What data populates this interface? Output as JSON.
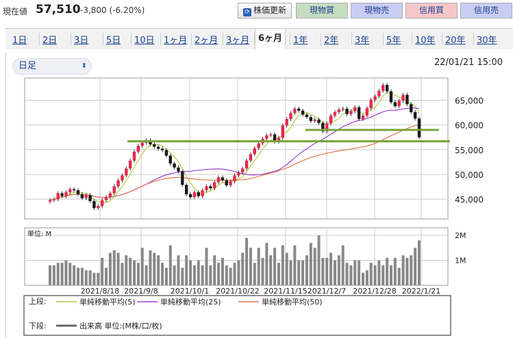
{
  "quote": {
    "label": "現在値",
    "price": "57,510",
    "change": "-3,800 (-6.20%)"
  },
  "buttons": {
    "refresh": "株価更新",
    "buy_spot": "現物買",
    "sell_spot": "現物売",
    "buy_margin": "信用買",
    "sell_margin": "信用売"
  },
  "tabs": [
    "1日",
    "2日",
    "3日",
    "5日",
    "10日",
    "1ヶ月",
    "2ヶ月",
    "3ヶ月",
    "6ヶ月",
    "1年",
    "2年",
    "3年",
    "5年",
    "10年",
    "20年",
    "30年"
  ],
  "selected_tab": "6ヶ月",
  "interval": "日足",
  "timestamp": "22/01/21 15:00",
  "chart_data": {
    "type": "candlestick",
    "y_ticks": [
      "65,000",
      "60,000",
      "55,000",
      "50,000",
      "45,000"
    ],
    "ylim": [
      41000,
      69500
    ],
    "x_ticks": [
      "2021/8/18",
      "2021/9/8",
      "2021/10/1",
      "2021/10/22",
      "2021/11/15",
      "2021/12/7",
      "2021/12/28",
      "2022/1/21"
    ],
    "close": [
      44800,
      45000,
      46200,
      45600,
      46400,
      47000,
      46800,
      46000,
      45200,
      45800,
      44600,
      43200,
      43600,
      44800,
      45400,
      46200,
      47600,
      48800,
      49800,
      51200,
      52800,
      54600,
      55800,
      56400,
      56900,
      56100,
      55600,
      55200,
      54900,
      53800,
      52200,
      51400,
      50600,
      47900,
      46000,
      45400,
      46400,
      45600,
      46800,
      47600,
      47200,
      48400,
      49400,
      48800,
      47800,
      48600,
      49800,
      50400,
      51200,
      52800,
      54100,
      55300,
      56300,
      57200,
      57900,
      58100,
      56600,
      57400,
      59900,
      61200,
      62400,
      63300,
      62900,
      62100,
      61600,
      60800,
      61100,
      60400,
      58700,
      60300,
      61900,
      62600,
      63100,
      63300,
      62200,
      62800,
      63600,
      61200,
      61900,
      63400,
      65100,
      65800,
      66900,
      68100,
      66800,
      64600,
      63800,
      64900,
      66100,
      64200,
      62600,
      61300,
      57510
    ],
    "volume": [
      0.8,
      0.8,
      0.9,
      0.9,
      1.0,
      0.9,
      0.8,
      0.7,
      0.7,
      0.6,
      0.6,
      0.5,
      0.5,
      1.1,
      0.7,
      1.3,
      1.4,
      1.3,
      0.9,
      1.2,
      1.1,
      1.0,
      0.9,
      1.5,
      0.8,
      1.4,
      1.3,
      1.2,
      0.9,
      0.7,
      1.6,
      0.8,
      1.2,
      0.7,
      1.2,
      1.0,
      0.8,
      1.0,
      0.8,
      1.5,
      0.8,
      1.2,
      0.9,
      1.1,
      0.8,
      0.7,
      0.9,
      1.0,
      1.3,
      1.9,
      1.5,
      0.9,
      1.5,
      1.1,
      1.7,
      1.2,
      1.5,
      0.9,
      1.6,
      1.3,
      1.0,
      1.6,
      1.0,
      1.0,
      1.2,
      1.7,
      1.5,
      2.0,
      1.1,
      1.1,
      1.3,
      1.0,
      1.2,
      1.6,
      0.9,
      0.8,
      1.0,
      1.0,
      0.5,
      0.6,
      0.9,
      0.8,
      1.0,
      0.8,
      1.1,
      0.8,
      1.1,
      0.7,
      1.2,
      1.1,
      1.2,
      1.5,
      1.8
    ],
    "volume_ticks": [
      "2M",
      "1M"
    ],
    "volume_max": 2.3,
    "volume_unit_label": "単位: M",
    "support_lines": [
      56700,
      59000
    ],
    "ma": [
      {
        "name": "単純移動平均(5)",
        "color": "#b8c94a",
        "period": 5
      },
      {
        "name": "単純移動平均(25)",
        "color": "#9b3fd0",
        "period": 25
      },
      {
        "name": "単純移動平均(50)",
        "color": "#e0784a",
        "period": 50
      }
    ],
    "legend_upper": "上段:",
    "legend_lower": "下段:",
    "volume_legend": "出来高 単位:(M株/口/枚)",
    "up_color": "#e8284a",
    "down_color": "#1a1a1a",
    "line_color": "#7aa23a"
  }
}
